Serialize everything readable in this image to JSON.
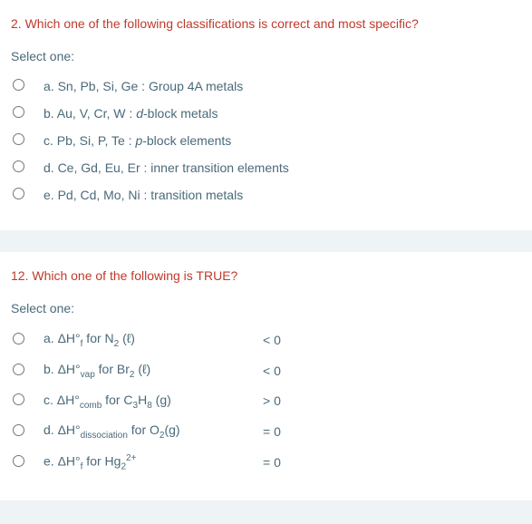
{
  "q1": {
    "title": "2. Which one of the following classifications is correct and most specific?",
    "selectOne": "Select one:",
    "options": [
      {
        "label_html": "a. Sn, Pb, Si, Ge : Group 4A metals"
      },
      {
        "label_html": "b. Au, V, Cr, W : <span class=\"italic\">d</span>-block metals"
      },
      {
        "label_html": "c. Pb, Si, P, Te : <span class=\"italic\">p</span>-block elements"
      },
      {
        "label_html": "d. Ce, Gd, Eu, Er : inner transition elements"
      },
      {
        "label_html": "e. Pd, Cd, Mo, Ni : transition metals"
      }
    ]
  },
  "q2": {
    "title": "12. Which one of the following is TRUE?",
    "selectOne": "Select one:",
    "options": [
      {
        "label_html": "a. ΔH°<sub>f</sub> for N<sub>2</sub> (ℓ)",
        "value": "< 0"
      },
      {
        "label_html": "b. ΔH°<sub>vap</sub> for Br<sub>2</sub> (ℓ)",
        "value": "< 0"
      },
      {
        "label_html": "c. ΔH°<sub>comb</sub> for C<sub>3</sub>H<sub>8</sub> (g)",
        "value": "> 0"
      },
      {
        "label_html": "d. ΔH°<sub>dissociation</sub> for O<sub>2</sub>(g)",
        "value": "= 0"
      },
      {
        "label_html": "e. ΔH°<sub>f</sub> for Hg<sub>2</sub><sup>2+</sup>",
        "value": "= 0"
      }
    ]
  },
  "layout": {
    "q2_label_width": 210
  }
}
